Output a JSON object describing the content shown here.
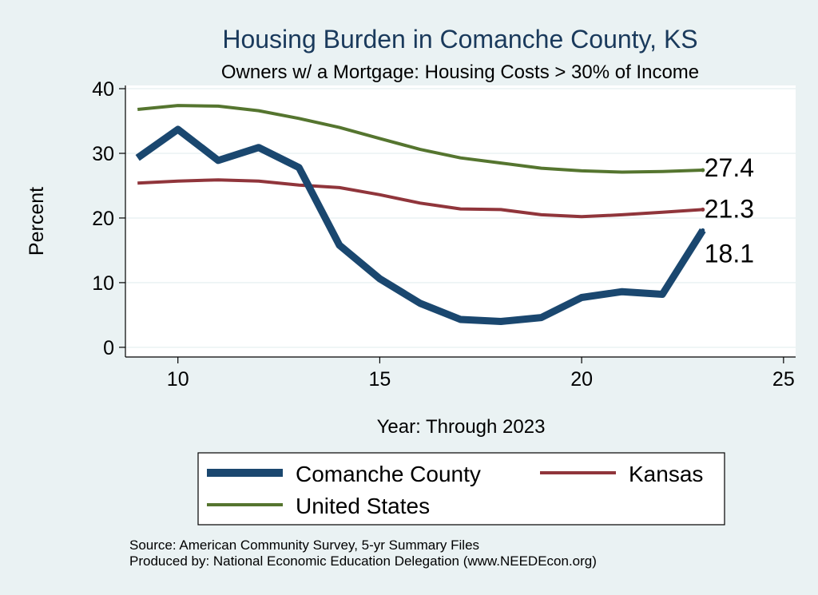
{
  "chart_data": {
    "type": "line",
    "title": "Housing Burden in Comanche County, KS",
    "subtitle": "Owners w/ a Mortgage: Housing Costs > 30% of Income",
    "xlabel": "Year: Through 2023",
    "ylabel": "Percent",
    "xlim": [
      8.7,
      25.3
    ],
    "ylim": [
      -1.5,
      40.5
    ],
    "xticks": [
      10,
      15,
      20,
      25
    ],
    "yticks": [
      0,
      10,
      20,
      30,
      40
    ],
    "grid": true,
    "legend_position": "bottom",
    "x": [
      9,
      10,
      11,
      12,
      13,
      14,
      15,
      16,
      17,
      18,
      19,
      20,
      21,
      22,
      23
    ],
    "series": [
      {
        "name": "Comanche County",
        "color": "#1a476f",
        "values": [
          29.3,
          33.7,
          28.9,
          30.9,
          27.8,
          15.8,
          10.6,
          6.8,
          4.3,
          4.0,
          4.6,
          7.7,
          8.6,
          8.2,
          18.1
        ],
        "end_label": "18.1"
      },
      {
        "name": "Kansas",
        "color": "#90353b",
        "values": [
          25.4,
          25.7,
          25.9,
          25.7,
          25.1,
          24.7,
          23.6,
          22.3,
          21.4,
          21.3,
          20.5,
          20.2,
          20.5,
          20.9,
          21.3
        ],
        "end_label": "21.3"
      },
      {
        "name": "United States",
        "color": "#55752f",
        "values": [
          36.8,
          37.4,
          37.3,
          36.6,
          35.4,
          34.0,
          32.3,
          30.6,
          29.3,
          28.5,
          27.7,
          27.3,
          27.1,
          27.2,
          27.4
        ],
        "end_label": "27.4"
      }
    ],
    "source": "Source: American Community Survey, 5-yr Summary Files",
    "producer": "Produced by: National Economic Education Delegation (www.NEEDEcon.org)"
  }
}
